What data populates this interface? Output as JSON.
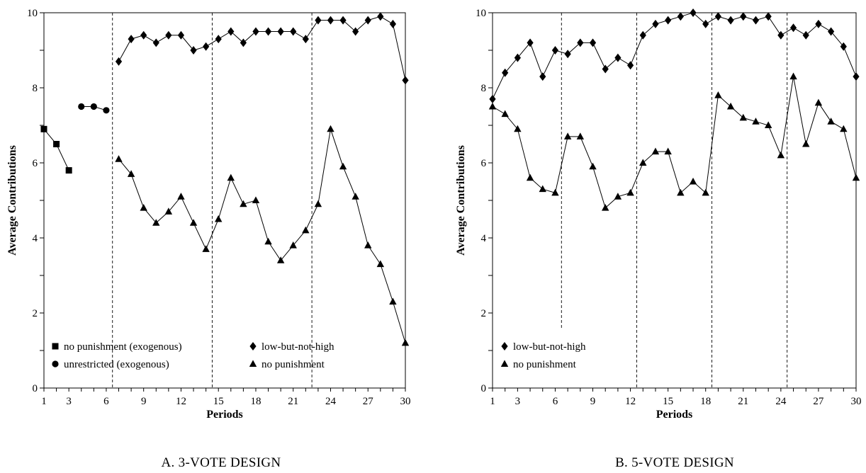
{
  "colors": {
    "ink": "#000000",
    "background": "#ffffff"
  },
  "chart_data": [
    {
      "type": "line",
      "caption": "A.  3-VOTE DESIGN",
      "xlabel": "Periods",
      "ylabel": "Average Contributions",
      "xlim": [
        1,
        30
      ],
      "ylim": [
        0,
        10
      ],
      "x_ticks": [
        1,
        3,
        6,
        9,
        12,
        15,
        18,
        21,
        24,
        27,
        30
      ],
      "y_ticks": [
        0,
        2,
        4,
        6,
        8,
        10
      ],
      "y_minor_ticks": [
        1,
        3,
        5,
        7,
        9
      ],
      "phase_dividers": [
        6.5,
        14.5,
        22.5
      ],
      "grid": false,
      "legend_position": "bottom-left",
      "series": [
        {
          "name": "no punishment (exogenous)",
          "marker": "square",
          "connected": true,
          "x": [
            1,
            2,
            3
          ],
          "values": [
            6.9,
            6.5,
            5.8
          ]
        },
        {
          "name": "unrestricted (exogenous)",
          "marker": "circle",
          "connected": true,
          "x": [
            4,
            5,
            6
          ],
          "values": [
            7.5,
            7.5,
            7.4
          ]
        },
        {
          "name": "low-but-not-high",
          "marker": "diamond",
          "connected": true,
          "x": [
            7,
            8,
            9,
            10,
            11,
            12,
            13,
            14,
            15,
            16,
            17,
            18,
            19,
            20,
            21,
            22,
            23,
            24,
            25,
            26,
            27,
            28,
            29,
            30
          ],
          "values": [
            8.7,
            9.3,
            9.4,
            9.2,
            9.4,
            9.4,
            9.0,
            9.1,
            9.3,
            9.5,
            9.2,
            9.5,
            9.5,
            9.5,
            9.5,
            9.3,
            9.8,
            9.8,
            9.8,
            9.5,
            9.8,
            9.9,
            9.7,
            8.2
          ]
        },
        {
          "name": "no punishment",
          "marker": "triangle",
          "connected": true,
          "x": [
            7,
            8,
            9,
            10,
            11,
            12,
            13,
            14,
            15,
            16,
            17,
            18,
            19,
            20,
            21,
            22,
            23,
            24,
            25,
            26,
            27,
            28,
            29,
            30
          ],
          "values": [
            6.1,
            5.7,
            4.8,
            4.4,
            4.7,
            5.1,
            4.4,
            3.7,
            4.5,
            5.6,
            4.9,
            5.0,
            3.9,
            3.4,
            3.8,
            4.2,
            4.9,
            6.9,
            5.9,
            5.1,
            3.8,
            3.3,
            2.3,
            1.2
          ]
        }
      ]
    },
    {
      "type": "line",
      "caption": "B.  5-VOTE DESIGN",
      "xlabel": "Periods",
      "ylabel": "Average Contributions",
      "xlim": [
        1,
        30
      ],
      "ylim": [
        0,
        10
      ],
      "x_ticks": [
        1,
        3,
        6,
        9,
        12,
        15,
        18,
        21,
        24,
        27,
        30
      ],
      "y_ticks": [
        0,
        2,
        4,
        6,
        8,
        10
      ],
      "y_minor_ticks": [
        1,
        3,
        5,
        7,
        9
      ],
      "phase_dividers": [
        6.5,
        12.5,
        18.5,
        24.5
      ],
      "grid": false,
      "legend_position": "bottom-left",
      "series": [
        {
          "name": "low-but-not-high",
          "marker": "diamond",
          "connected": true,
          "x": [
            1,
            2,
            3,
            4,
            5,
            6,
            7,
            8,
            9,
            10,
            11,
            12,
            13,
            14,
            15,
            16,
            17,
            18,
            19,
            20,
            21,
            22,
            23,
            24,
            25,
            26,
            27,
            28,
            29,
            30
          ],
          "values": [
            7.7,
            8.4,
            8.8,
            9.2,
            8.3,
            9.0,
            8.9,
            9.2,
            9.2,
            8.5,
            8.8,
            8.6,
            9.4,
            9.7,
            9.8,
            9.9,
            10.0,
            9.7,
            9.9,
            9.8,
            9.9,
            9.8,
            9.9,
            9.4,
            9.6,
            9.4,
            9.7,
            9.5,
            9.1,
            8.3
          ]
        },
        {
          "name": "no punishment",
          "marker": "triangle",
          "connected": true,
          "x": [
            1,
            2,
            3,
            4,
            5,
            6,
            7,
            8,
            9,
            10,
            11,
            12,
            13,
            14,
            15,
            16,
            17,
            18,
            19,
            20,
            21,
            22,
            23,
            24,
            25,
            26,
            27,
            28,
            29,
            30
          ],
          "values": [
            7.5,
            7.3,
            6.9,
            5.6,
            5.3,
            5.2,
            6.7,
            6.7,
            5.9,
            4.8,
            5.1,
            5.2,
            6.0,
            6.3,
            6.3,
            5.2,
            5.5,
            5.2,
            7.8,
            7.5,
            7.2,
            7.1,
            7.0,
            6.2,
            8.3,
            6.5,
            7.6,
            7.1,
            6.9,
            5.6
          ]
        }
      ]
    }
  ]
}
